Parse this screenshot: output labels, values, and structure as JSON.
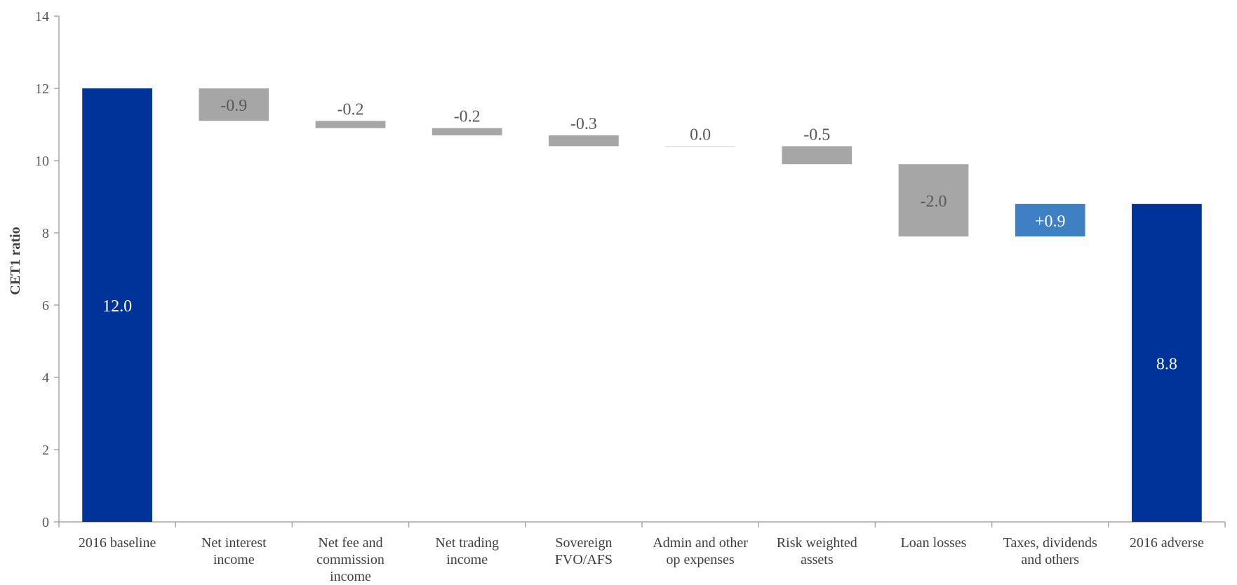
{
  "chart_data": {
    "type": "bar",
    "subtype": "waterfall",
    "ylabel": "CET1 ratio",
    "xlabel": "",
    "title": "",
    "ylim": [
      0,
      14
    ],
    "yticks": [
      "0",
      "2",
      "4",
      "6",
      "8",
      "10",
      "12",
      "14"
    ],
    "grid": false,
    "legend": "none",
    "categories": [
      [
        "2016 baseline"
      ],
      [
        "Net interest",
        "income"
      ],
      [
        "Net fee and",
        "commission",
        "income"
      ],
      [
        "Net trading",
        "income"
      ],
      [
        "Sovereign",
        "FVO/AFS"
      ],
      [
        "Admin and other",
        "op expenses"
      ],
      [
        "Risk weighted",
        "assets"
      ],
      [
        "Loan losses"
      ],
      [
        "Taxes, dividends",
        "and others"
      ],
      [
        "2016 adverse"
      ]
    ],
    "bars": [
      {
        "kind": "total",
        "start": 0,
        "end": 12.0,
        "label": "12.0"
      },
      {
        "kind": "change",
        "start": 12.0,
        "end": 11.1,
        "label": "-0.9"
      },
      {
        "kind": "change",
        "start": 11.1,
        "end": 10.9,
        "label": "-0.2"
      },
      {
        "kind": "change",
        "start": 10.9,
        "end": 10.7,
        "label": "-0.2"
      },
      {
        "kind": "change",
        "start": 10.7,
        "end": 10.4,
        "label": "-0.3"
      },
      {
        "kind": "change",
        "start": 10.4,
        "end": 10.4,
        "label": "0.0"
      },
      {
        "kind": "change",
        "start": 10.4,
        "end": 9.9,
        "label": "-0.5"
      },
      {
        "kind": "change",
        "start": 9.9,
        "end": 7.9,
        "label": "-2.0"
      },
      {
        "kind": "change",
        "start": 7.9,
        "end": 8.8,
        "label": "+0.9"
      },
      {
        "kind": "total",
        "start": 0,
        "end": 8.8,
        "label": "8.8"
      }
    ],
    "colors": {
      "total": "#003399",
      "decrease": "#a6a6a6",
      "increase": "#3f7fc4",
      "axis": "#a6a6a6",
      "total_label": "#ffffff",
      "decrease_label": "#595959",
      "increase_label": "#ffffff"
    }
  }
}
